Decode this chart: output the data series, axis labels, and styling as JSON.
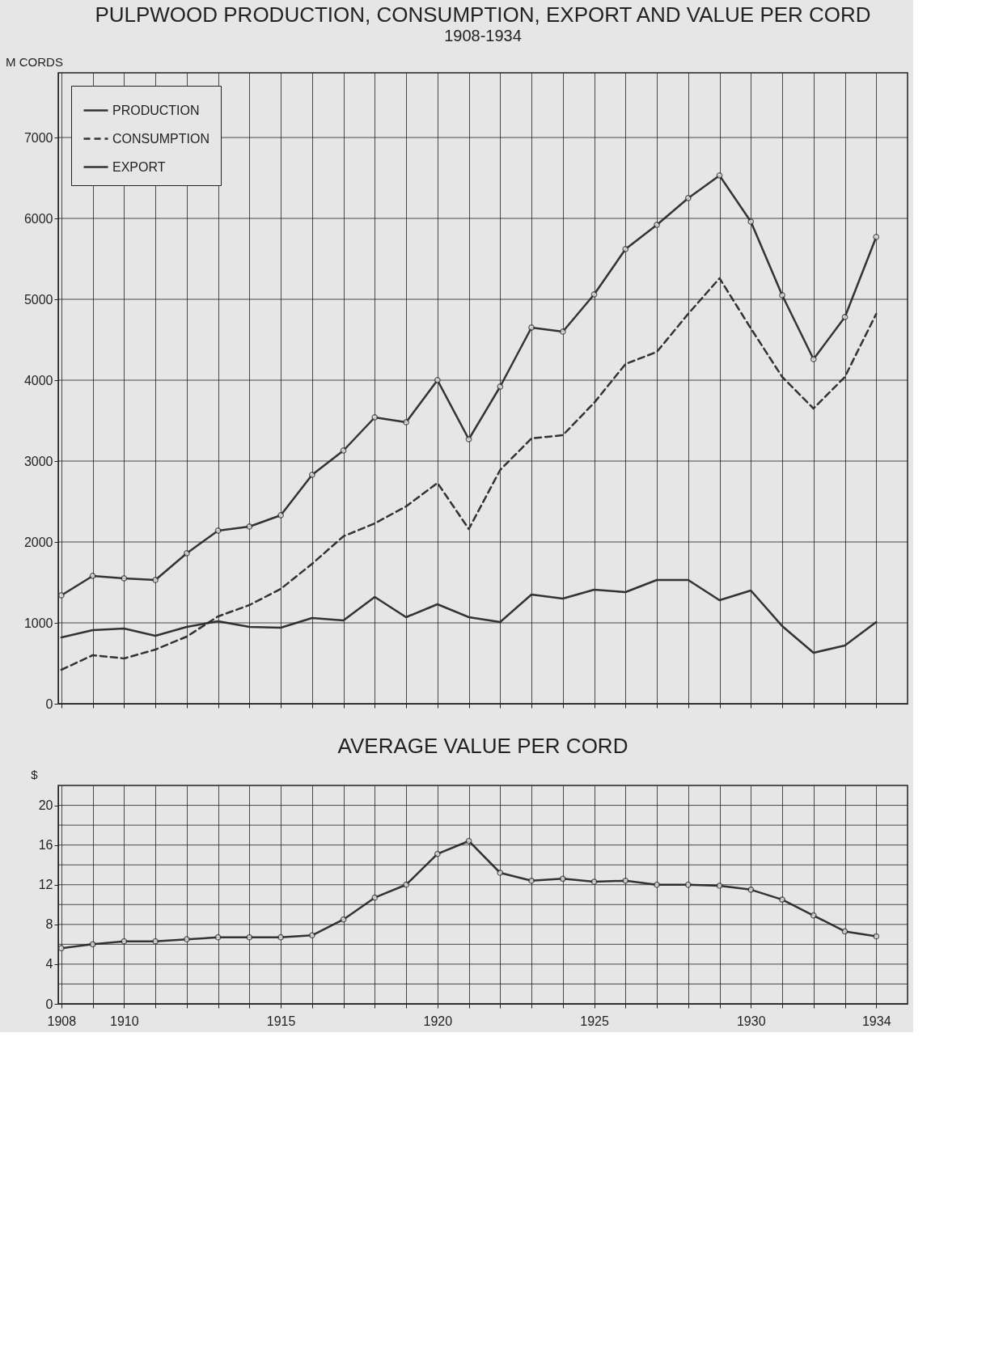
{
  "chart_data": [
    {
      "type": "line",
      "title": "PULPWOOD PRODUCTION, CONSUMPTION, EXPORT AND VALUE PER CORD",
      "subtitle": "1908-1934",
      "ylabel": "M CORDS",
      "x": [
        1908,
        1909,
        1910,
        1911,
        1912,
        1913,
        1914,
        1915,
        1916,
        1917,
        1918,
        1919,
        1920,
        1921,
        1922,
        1923,
        1924,
        1925,
        1926,
        1927,
        1928,
        1929,
        1930,
        1931,
        1932,
        1933,
        1934
      ],
      "series": [
        {
          "name": "PRODUCTION",
          "color": "#333333",
          "marker": "circle",
          "line_style": "solid",
          "values": [
            1340,
            1580,
            1550,
            1530,
            1860,
            2140,
            2190,
            2330,
            2830,
            3130,
            3540,
            3480,
            4000,
            3270,
            3920,
            4650,
            4600,
            5060,
            5620,
            5920,
            6250,
            6530,
            5960,
            5050,
            4260,
            4780,
            5770
          ]
        },
        {
          "name": "CONSUMPTION",
          "color": "#333333",
          "marker": "none",
          "line_style": "dashed",
          "values": [
            420,
            600,
            560,
            670,
            830,
            1080,
            1220,
            1420,
            1730,
            2070,
            2230,
            2440,
            2730,
            2160,
            2890,
            3280,
            3320,
            3720,
            4200,
            4350,
            4820,
            5260,
            4640,
            4040,
            3650,
            4040,
            4820
          ]
        },
        {
          "name": "EXPORT",
          "color": "#333333",
          "marker": "none",
          "line_style": "solid",
          "values": [
            820,
            910,
            930,
            840,
            950,
            1020,
            950,
            940,
            1060,
            1030,
            1320,
            1070,
            1230,
            1070,
            1010,
            1350,
            1300,
            1410,
            1380,
            1530,
            1530,
            1280,
            1400,
            960,
            630,
            720,
            1010
          ]
        }
      ],
      "xlim": [
        1907.9,
        1935
      ],
      "xticks": [
        {
          "value": 1908,
          "label": null
        },
        {
          "value": 1909,
          "label": null
        },
        {
          "value": 1910,
          "label": null
        },
        {
          "value": 1911,
          "label": null
        },
        {
          "value": 1912,
          "label": null
        },
        {
          "value": 1913,
          "label": null
        },
        {
          "value": 1914,
          "label": null
        },
        {
          "value": 1915,
          "label": null
        },
        {
          "value": 1916,
          "label": null
        },
        {
          "value": 1917,
          "label": null
        },
        {
          "value": 1918,
          "label": null
        },
        {
          "value": 1919,
          "label": null
        },
        {
          "value": 1920,
          "label": null
        },
        {
          "value": 1921,
          "label": null
        },
        {
          "value": 1922,
          "label": null
        },
        {
          "value": 1923,
          "label": null
        },
        {
          "value": 1924,
          "label": null
        },
        {
          "value": 1925,
          "label": null
        },
        {
          "value": 1926,
          "label": null
        },
        {
          "value": 1927,
          "label": null
        },
        {
          "value": 1928,
          "label": null
        },
        {
          "value": 1929,
          "label": null
        },
        {
          "value": 1930,
          "label": null
        },
        {
          "value": 1931,
          "label": null
        },
        {
          "value": 1932,
          "label": null
        },
        {
          "value": 1933,
          "label": null
        },
        {
          "value": 1934,
          "label": null
        }
      ],
      "ylim": [
        0,
        7800
      ],
      "yticks": [
        0,
        1000,
        2000,
        3000,
        4000,
        5000,
        6000,
        7000
      ],
      "grid": true,
      "legend": "top left",
      "tick_labels": "y"
    },
    {
      "type": "line",
      "title": "AVERAGE VALUE PER CORD",
      "ylabel": "$",
      "x": [
        1908,
        1909,
        1910,
        1911,
        1912,
        1913,
        1914,
        1915,
        1916,
        1917,
        1918,
        1919,
        1920,
        1921,
        1922,
        1923,
        1924,
        1925,
        1926,
        1927,
        1928,
        1929,
        1930,
        1931,
        1932,
        1933,
        1934
      ],
      "series": [
        {
          "color": "#333333",
          "marker": "circle",
          "line_style": "solid",
          "values": [
            5.6,
            6.0,
            6.3,
            6.3,
            6.5,
            6.7,
            6.7,
            6.7,
            6.9,
            8.5,
            10.7,
            12.0,
            15.1,
            16.4,
            13.2,
            12.4,
            12.6,
            12.3,
            12.4,
            12.0,
            12.0,
            11.9,
            11.5,
            10.5,
            8.9,
            7.3,
            6.8
          ]
        }
      ],
      "xlim": [
        1907.9,
        1935
      ],
      "xticks": [
        1908,
        {
          "value": 1909,
          "label": null
        },
        1910,
        {
          "value": 1911,
          "label": null
        },
        {
          "value": 1912,
          "label": null
        },
        {
          "value": 1913,
          "label": null
        },
        {
          "value": 1914,
          "label": null
        },
        1915,
        {
          "value": 1916,
          "label": null
        },
        {
          "value": 1917,
          "label": null
        },
        {
          "value": 1918,
          "label": null
        },
        {
          "value": 1919,
          "label": null
        },
        1920,
        {
          "value": 1921,
          "label": null
        },
        {
          "value": 1922,
          "label": null
        },
        {
          "value": 1923,
          "label": null
        },
        {
          "value": 1924,
          "label": null
        },
        1925,
        {
          "value": 1926,
          "label": null
        },
        {
          "value": 1927,
          "label": null
        },
        {
          "value": 1928,
          "label": null
        },
        {
          "value": 1929,
          "label": null
        },
        1930,
        {
          "value": 1931,
          "label": null
        },
        {
          "value": 1932,
          "label": null
        },
        {
          "value": 1933,
          "label": null
        },
        1934
      ],
      "ylim": [
        0,
        22
      ],
      "yticks": [
        0,
        {
          "value": 2,
          "label": null
        },
        4,
        {
          "value": 6,
          "label": null
        },
        8,
        {
          "value": 10,
          "label": null
        },
        12,
        {
          "value": 14,
          "label": null
        },
        16,
        {
          "value": 18,
          "label": null
        },
        20
      ],
      "grid": true,
      "legend": false
    }
  ]
}
